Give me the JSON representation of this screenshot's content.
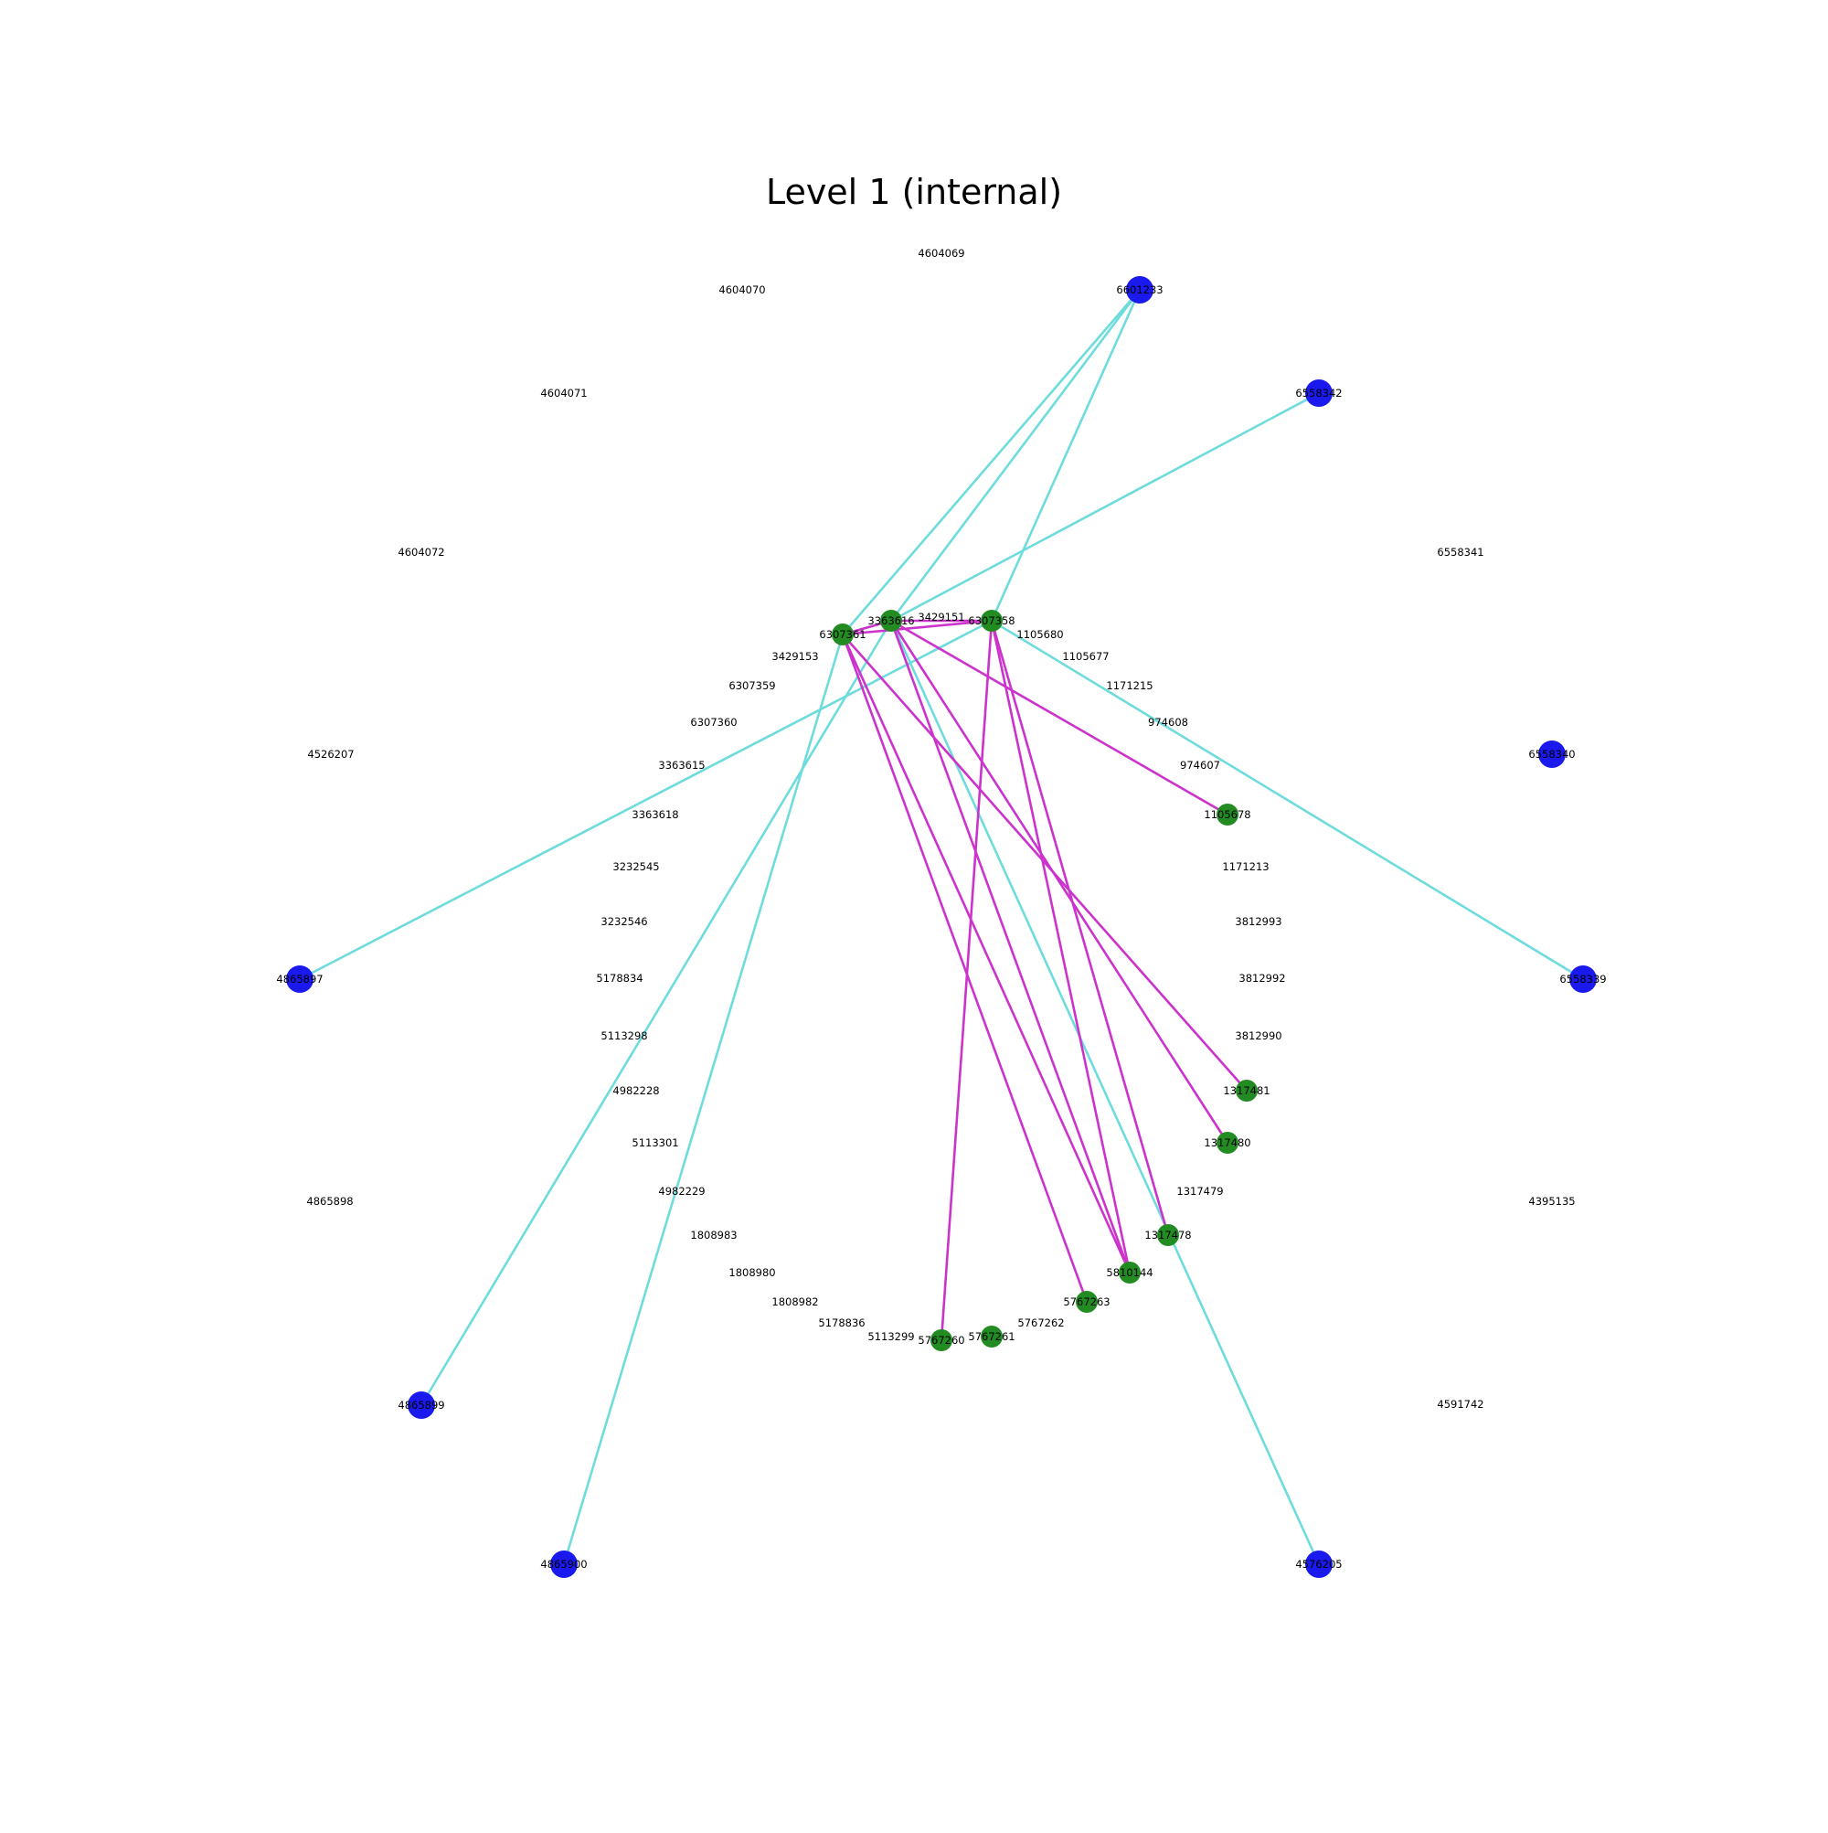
{
  "title": "Level 1 (internal)",
  "colors": {
    "internal_node": "#228b22",
    "external_node": "#1a1aee",
    "internal_edge": "#cc33cc",
    "external_edge": "#6edcdc",
    "label": "#000000"
  },
  "nodes": [
    {
      "id": "4604069",
      "type": "label"
    },
    {
      "id": "4604070",
      "type": "label"
    },
    {
      "id": "4604071",
      "type": "label"
    },
    {
      "id": "4604072",
      "type": "label"
    },
    {
      "id": "4526207",
      "type": "label"
    },
    {
      "id": "4865897",
      "type": "external"
    },
    {
      "id": "4865898",
      "type": "label"
    },
    {
      "id": "4865899",
      "type": "external"
    },
    {
      "id": "4865900",
      "type": "external"
    },
    {
      "id": "4576205",
      "type": "external"
    },
    {
      "id": "4591742",
      "type": "label"
    },
    {
      "id": "4395135",
      "type": "label"
    },
    {
      "id": "6558339",
      "type": "external"
    },
    {
      "id": "6558340",
      "type": "external"
    },
    {
      "id": "6558341",
      "type": "label"
    },
    {
      "id": "6558342",
      "type": "external"
    },
    {
      "id": "6601233",
      "type": "external"
    },
    {
      "id": "6307361",
      "type": "internal"
    },
    {
      "id": "3363616",
      "type": "internal"
    },
    {
      "id": "3429151",
      "type": "label"
    },
    {
      "id": "6307358",
      "type": "internal"
    },
    {
      "id": "1105680",
      "type": "label"
    },
    {
      "id": "1105677",
      "type": "label"
    },
    {
      "id": "1171215",
      "type": "label"
    },
    {
      "id": "974608",
      "type": "label"
    },
    {
      "id": "974607",
      "type": "label"
    },
    {
      "id": "1105678",
      "type": "internal"
    },
    {
      "id": "1171213",
      "type": "label"
    },
    {
      "id": "3812993",
      "type": "label"
    },
    {
      "id": "3812992",
      "type": "label"
    },
    {
      "id": "3812990",
      "type": "label"
    },
    {
      "id": "1317481",
      "type": "internal"
    },
    {
      "id": "1317480",
      "type": "internal"
    },
    {
      "id": "1317479",
      "type": "label"
    },
    {
      "id": "1317478",
      "type": "internal"
    },
    {
      "id": "5810144",
      "type": "internal"
    },
    {
      "id": "5767263",
      "type": "internal"
    },
    {
      "id": "5767262",
      "type": "label"
    },
    {
      "id": "5767261",
      "type": "internal"
    },
    {
      "id": "5767260",
      "type": "internal"
    },
    {
      "id": "5113299",
      "type": "label"
    },
    {
      "id": "5178836",
      "type": "label"
    },
    {
      "id": "1808982",
      "type": "label"
    },
    {
      "id": "1808980",
      "type": "label"
    },
    {
      "id": "1808983",
      "type": "label"
    },
    {
      "id": "4982229",
      "type": "label"
    },
    {
      "id": "5113301",
      "type": "label"
    },
    {
      "id": "4982228",
      "type": "label"
    },
    {
      "id": "5113298",
      "type": "label"
    },
    {
      "id": "5178834",
      "type": "label"
    },
    {
      "id": "3232546",
      "type": "label"
    },
    {
      "id": "3232545",
      "type": "label"
    },
    {
      "id": "3363618",
      "type": "label"
    },
    {
      "id": "3363615",
      "type": "label"
    },
    {
      "id": "6307360",
      "type": "label"
    },
    {
      "id": "6307359",
      "type": "label"
    },
    {
      "id": "3429153",
      "type": "label"
    }
  ],
  "edges": [
    {
      "source": "6601233",
      "target": "6307361",
      "type": "external"
    },
    {
      "source": "6601233",
      "target": "3363616",
      "type": "external"
    },
    {
      "source": "6601233",
      "target": "6307358",
      "type": "external"
    },
    {
      "source": "6558342",
      "target": "3363616",
      "type": "external"
    },
    {
      "source": "6307358",
      "target": "4865897",
      "type": "external"
    },
    {
      "source": "3363616",
      "target": "4865899",
      "type": "external"
    },
    {
      "source": "6307361",
      "target": "4865900",
      "type": "external"
    },
    {
      "source": "3363616",
      "target": "4576205",
      "type": "external"
    },
    {
      "source": "6307358",
      "target": "6558339",
      "type": "external"
    },
    {
      "source": "6307361",
      "target": "3363616",
      "type": "internal"
    },
    {
      "source": "6307361",
      "target": "6307358",
      "type": "internal"
    },
    {
      "source": "3363616",
      "target": "6307358",
      "type": "internal"
    },
    {
      "source": "3363616",
      "target": "1105678",
      "type": "internal"
    },
    {
      "source": "6307361",
      "target": "1317481",
      "type": "internal"
    },
    {
      "source": "3363616",
      "target": "1317480",
      "type": "internal"
    },
    {
      "source": "6307358",
      "target": "1317478",
      "type": "internal"
    },
    {
      "source": "6307361",
      "target": "5810144",
      "type": "internal"
    },
    {
      "source": "3363616",
      "target": "5810144",
      "type": "internal"
    },
    {
      "source": "6307358",
      "target": "5810144",
      "type": "internal"
    },
    {
      "source": "6307361",
      "target": "5767263",
      "type": "internal"
    },
    {
      "source": "6307358",
      "target": "5767260",
      "type": "internal"
    }
  ]
}
